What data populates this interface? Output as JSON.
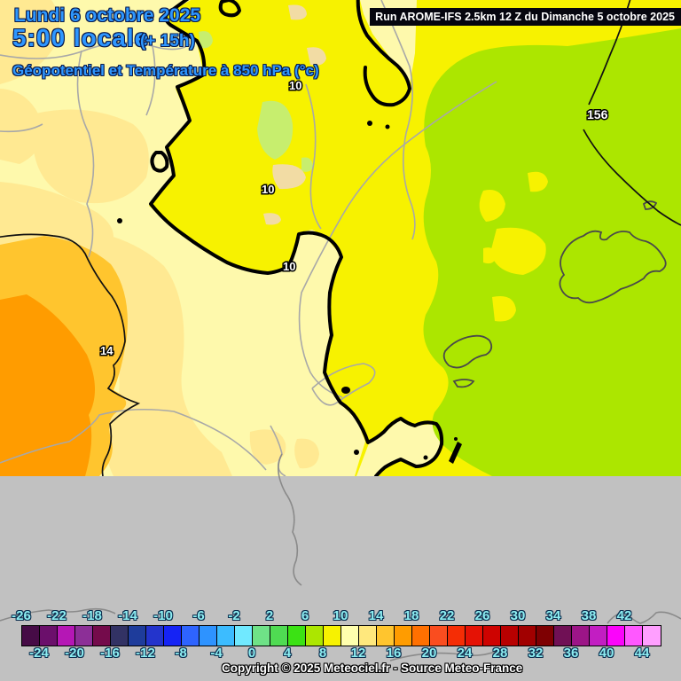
{
  "header": {
    "date_line": "Lundi 6 octobre 2025",
    "time_line": "5:00 locale",
    "offset": "(+ 15h)",
    "subtitle": "Géopotentiel et Température à 850 hPa (°c)",
    "run_info": "Run AROME-IFS 2.5km 12 Z du Dimanche 5 octobre 2025"
  },
  "map": {
    "labels": [
      {
        "text": "10"
      },
      {
        "text": "10"
      },
      {
        "text": "10"
      },
      {
        "text": "14"
      },
      {
        "text": "156"
      }
    ],
    "region_colors": {
      "pale_yellow_10_12": "#fef9ac",
      "bright_yellow_8_10": "#f7f200",
      "chartreuse_6_8": "#ace600",
      "light_yellow_12_14": "#ffe992",
      "amber_14_16": "#ffc52e",
      "orange_16_18": "#ff9c00",
      "green_patch": "#c7ee6e",
      "tan_patch": "#f2dca4",
      "no_data_gray": "#c1c1c1",
      "border_gray": "#a8a8a8",
      "coast_dark": "#4a4a4a",
      "isotherm_black": "#000000"
    }
  },
  "scale": {
    "start": -26,
    "end": 46,
    "step": 2,
    "cell_colors": [
      "#460b46",
      "#6b0f6b",
      "#b517b5",
      "#8c2f97",
      "#740b4b",
      "#323264",
      "#1e3c9b",
      "#2334cc",
      "#1523f5",
      "#2e64ff",
      "#2e93ff",
      "#3cbcff",
      "#70e9ff",
      "#6fe287",
      "#4fdb52",
      "#3be214",
      "#ace600",
      "#f7f200",
      "#ffffad",
      "#ffe87d",
      "#ffc52e",
      "#ff9c00",
      "#ff7000",
      "#fa4d1f",
      "#f52d05",
      "#e51205",
      "#ce0300",
      "#b80000",
      "#a10000",
      "#7e0002",
      "#701055",
      "#9c1587",
      "#c21ec2",
      "#fb04fb",
      "#ff58ff",
      "#ff9fff"
    ],
    "top_labels": [
      -26,
      -22,
      -18,
      -14,
      -10,
      -6,
      -2,
      2,
      6,
      10,
      14,
      18,
      22,
      26,
      30,
      34,
      38,
      42
    ],
    "bottom_labels": [
      -24,
      -20,
      -16,
      -12,
      -8,
      -4,
      0,
      4,
      8,
      12,
      16,
      20,
      24,
      28,
      32,
      36,
      40,
      44
    ]
  },
  "footer": {
    "copyright": "Copyright © 2025 Meteociel.fr - Source Meteo-France"
  }
}
